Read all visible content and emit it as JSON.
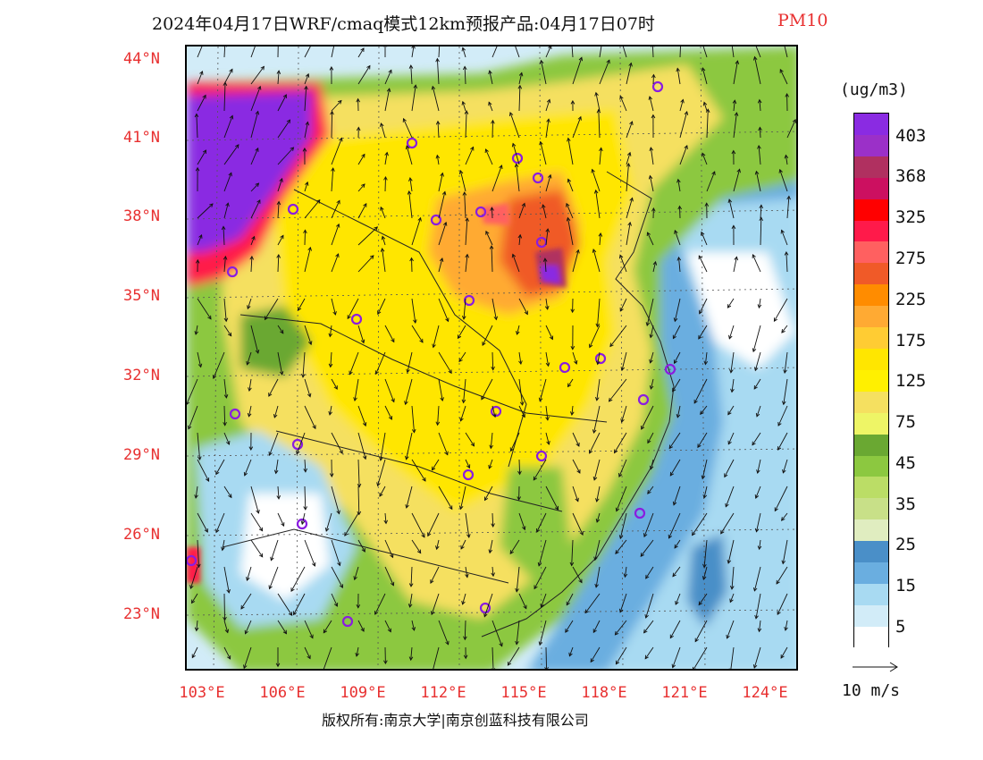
{
  "title": {
    "main": "2024年04月17日WRF/cmaq模式12km预报产品:04月17日07时",
    "variable": "PM10"
  },
  "axes": {
    "lat_labels": [
      "44°N",
      "41°N",
      "38°N",
      "35°N",
      "32°N",
      "29°N",
      "26°N",
      "23°N"
    ],
    "lon_labels": [
      "103°E",
      "106°E",
      "109°E",
      "112°E",
      "115°E",
      "118°E",
      "121°E",
      "124°E"
    ]
  },
  "colorbar": {
    "unit": "(ug/m3)",
    "labels": [
      "403",
      "368",
      "325",
      "275",
      "225",
      "175",
      "125",
      "75",
      "45",
      "35",
      "25",
      "15",
      "5"
    ],
    "colors": [
      "#8a2be2",
      "#9b30c8",
      "#b03060",
      "#cc1060",
      "#ff0000",
      "#ff1a4a",
      "#ff6060",
      "#f05a28",
      "#ff8c00",
      "#ffaa33",
      "#ffcc33",
      "#ffe600",
      "#fff000",
      "#f5e060",
      "#eef566",
      "#6aa832",
      "#8cc840",
      "#bbdd66",
      "#c8e088",
      "#e0edc0",
      "#4a8fc8",
      "#6aaee0",
      "#a8daf2",
      "#d2ecf8",
      "#ffffff"
    ]
  },
  "wind": {
    "scale_label": "10 m/s"
  },
  "copyright": "版权所有:南京大学|南京创蓝科技有限公司"
}
